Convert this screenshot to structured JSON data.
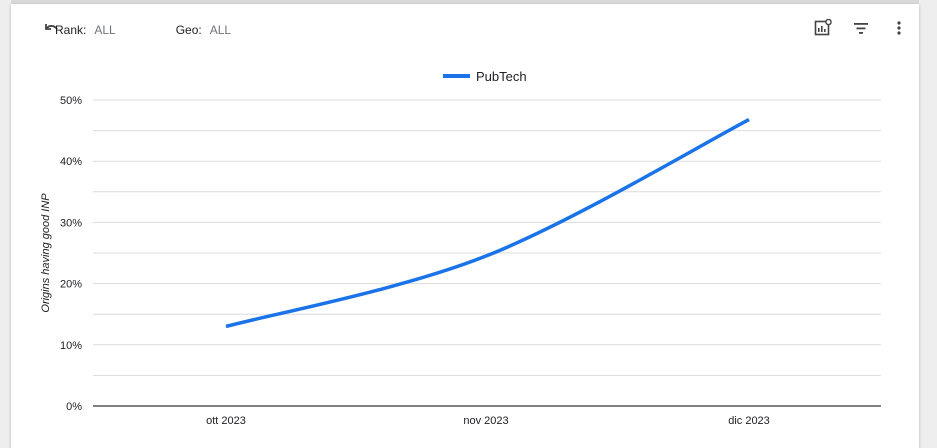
{
  "filters": {
    "rank": {
      "label": "Rank:",
      "value": "ALL"
    },
    "geo": {
      "label": "Geo:",
      "value": "ALL"
    }
  },
  "toolbar": {
    "icons": [
      "chart-settings-icon",
      "filter-icon",
      "more-vert-icon"
    ]
  },
  "colors": {
    "series": "#1a73e8",
    "grid": "#dcdcdc",
    "axis": "#000000",
    "text": "#202124"
  },
  "chart_data": {
    "type": "line",
    "title": "",
    "xlabel": "",
    "ylabel": "Origins having good INP",
    "categories": [
      "ott 2023",
      "nov 2023",
      "dic 2023"
    ],
    "series": [
      {
        "name": "PubTech",
        "values": [
          13.0,
          24.5,
          46.8
        ]
      }
    ],
    "ylim": [
      0,
      50
    ],
    "yticks": [
      0,
      10,
      20,
      30,
      40,
      50
    ],
    "ytick_labels": [
      "0%",
      "10%",
      "20%",
      "30%",
      "40%",
      "50%"
    ],
    "grid": true,
    "legend": "top-center"
  }
}
